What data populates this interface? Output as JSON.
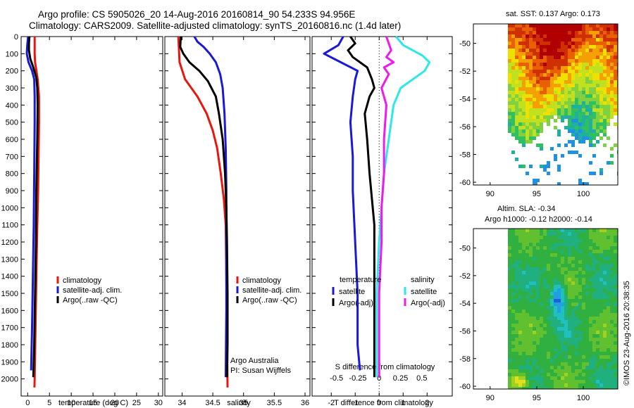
{
  "title": {
    "line1": "Argo profile: CS 5905026_20 14-Aug-2016 20160814_90 54.233S 94.956E",
    "line2": "Climatology: CARS2009. Satellite-adjusted climatology: synTS_20160816.nc (1.4d later)"
  },
  "right_titles": {
    "sst": "sat. SST: 0.137 Argo: 0.173",
    "sla1": "Altim. SLA: -0.34",
    "sla2": "Argo h1000: -0.12 h2000: -0.14"
  },
  "credit": {
    "agency": "Argo Australia",
    "pi": "PI: Susan Wijffels",
    "stamp": "©IMOS 23-Aug-2016 20:38:35"
  },
  "colors": {
    "red": "#e8160c",
    "blue": "#1a1ad6",
    "black": "#000000",
    "cyan": "#2ee8e8",
    "magenta": "#ee1aee"
  },
  "chart_data": [
    {
      "type": "line",
      "xlabel": "temperature (deg C)",
      "ylim": [
        2100,
        0
      ],
      "xlim": [
        -1.5,
        31
      ],
      "xticks": [
        "0",
        "5",
        "10",
        "15",
        "20",
        "25",
        "30"
      ],
      "xtick_values": [
        0,
        5,
        10,
        15,
        20,
        25,
        30
      ],
      "yticks": [
        "0",
        "100",
        "200",
        "300",
        "400",
        "500",
        "600",
        "700",
        "800",
        "900",
        "1000",
        "1100",
        "1200",
        "1300",
        "1400",
        "1500",
        "1600",
        "1700",
        "1800",
        "1900",
        "2000"
      ],
      "ytick_values": [
        0,
        100,
        200,
        300,
        400,
        500,
        600,
        700,
        800,
        900,
        1000,
        1100,
        1200,
        1300,
        1400,
        1500,
        1600,
        1700,
        1800,
        1900,
        2000
      ],
      "legend": [
        "climatology",
        "satellite-adj. clim.",
        "Argo(..raw -QC)"
      ],
      "series": [
        {
          "name": "climatology",
          "color": "red",
          "points": [
            [
              1.6,
              0
            ],
            [
              1.6,
              100
            ],
            [
              1.7,
              150
            ],
            [
              2.3,
              250
            ],
            [
              2.6,
              350
            ],
            [
              2.6,
              500
            ],
            [
              2.5,
              700
            ],
            [
              2.4,
              900
            ],
            [
              2.2,
              1100
            ],
            [
              2.0,
              1400
            ],
            [
              1.8,
              1700
            ],
            [
              1.6,
              2000
            ],
            [
              1.55,
              2050
            ]
          ]
        },
        {
          "name": "satellite-adj. clim.",
          "color": "blue",
          "points": [
            [
              0.1,
              0
            ],
            [
              -0.1,
              50
            ],
            [
              -0.2,
              100
            ],
            [
              0.2,
              150
            ],
            [
              1.0,
              200
            ],
            [
              1.5,
              250
            ],
            [
              1.6,
              350
            ],
            [
              1.6,
              500
            ],
            [
              1.5,
              800
            ],
            [
              1.4,
              1100
            ],
            [
              1.2,
              1400
            ],
            [
              1.0,
              1700
            ],
            [
              0.8,
              1950
            ]
          ]
        },
        {
          "name": "Argo(..raw -QC)",
          "color": "black",
          "points": [
            [
              0.4,
              0
            ],
            [
              0.3,
              40
            ],
            [
              0.3,
              80
            ],
            [
              0.6,
              130
            ],
            [
              1.3,
              180
            ],
            [
              2.0,
              240
            ],
            [
              2.2,
              300
            ],
            [
              2.3,
              400
            ],
            [
              2.2,
              600
            ],
            [
              2.0,
              900
            ],
            [
              1.9,
              1200
            ],
            [
              1.7,
              1500
            ],
            [
              1.5,
              1800
            ],
            [
              1.3,
              1990
            ]
          ]
        }
      ]
    },
    {
      "type": "line",
      "xlabel": "salinity",
      "ylim": [
        2100,
        0
      ],
      "xlim": [
        33.72,
        36.08
      ],
      "xticks": [
        "34",
        "34.5",
        "35",
        "35.5",
        "36"
      ],
      "xtick_values": [
        34,
        34.5,
        35,
        35.5,
        36
      ],
      "legend": [
        "climatology",
        "satellite-adj. clim.",
        "Argo(..raw -QC)"
      ],
      "series": [
        {
          "name": "climatology",
          "color": "red",
          "points": [
            [
              33.94,
              0
            ],
            [
              33.96,
              150
            ],
            [
              34.05,
              250
            ],
            [
              34.25,
              350
            ],
            [
              34.4,
              450
            ],
            [
              34.5,
              550
            ],
            [
              34.57,
              650
            ],
            [
              34.63,
              800
            ],
            [
              34.68,
              950
            ],
            [
              34.71,
              1100
            ],
            [
              34.72,
              1400
            ],
            [
              34.73,
              1700
            ],
            [
              34.74,
              2050
            ]
          ]
        },
        {
          "name": "satellite-adj. clim.",
          "color": "blue",
          "points": [
            [
              34.2,
              0
            ],
            [
              34.25,
              30
            ],
            [
              34.35,
              60
            ],
            [
              34.45,
              100
            ],
            [
              34.55,
              150
            ],
            [
              34.62,
              220
            ],
            [
              34.66,
              300
            ],
            [
              34.69,
              450
            ],
            [
              34.71,
              650
            ],
            [
              34.72,
              900
            ],
            [
              34.72,
              1200
            ],
            [
              34.72,
              1600
            ],
            [
              34.71,
              1990
            ]
          ]
        },
        {
          "name": "Argo(..raw -QC)",
          "color": "black",
          "points": [
            [
              33.98,
              0
            ],
            [
              33.97,
              60
            ],
            [
              34.02,
              100
            ],
            [
              34.12,
              150
            ],
            [
              34.28,
              200
            ],
            [
              34.42,
              260
            ],
            [
              34.55,
              350
            ],
            [
              34.6,
              450
            ],
            [
              34.66,
              600
            ],
            [
              34.7,
              800
            ],
            [
              34.72,
              1000
            ],
            [
              34.73,
              1200
            ],
            [
              34.74,
              1500
            ],
            [
              34.74,
              1800
            ],
            [
              34.73,
              1990
            ]
          ]
        }
      ]
    },
    {
      "type": "line",
      "xlabel": "T difference from climatology",
      "xlabel_top": "S difference from climatology",
      "ylim": [
        2100,
        0
      ],
      "xlim": [
        -2.8,
        3.05
      ],
      "xticks": [
        "-2",
        "-1",
        "0",
        "1",
        "2"
      ],
      "xtick_values": [
        -2,
        -1,
        0,
        1,
        2
      ],
      "s_ticks": [
        "-0.5",
        "-0.25",
        "0",
        "0.25",
        "0.5"
      ],
      "s_tick_t_values": [
        -1.78,
        -0.89,
        0,
        0.89,
        1.78
      ],
      "legend_titles": [
        "temperature",
        "salinity"
      ],
      "legend": [
        "satellite",
        "Argo(-adj)",
        "satellite",
        "Argo(-adj)"
      ],
      "series": [
        {
          "name": "satellite",
          "legend_group": "temperature",
          "color": "blue",
          "points": [
            [
              -1.5,
              0
            ],
            [
              -1.7,
              50
            ],
            [
              -2.3,
              100
            ],
            [
              -1.6,
              150
            ],
            [
              -0.9,
              200
            ],
            [
              -1.0,
              250
            ],
            [
              -1.1,
              350
            ],
            [
              -1.2,
              500
            ],
            [
              -1.1,
              700
            ],
            [
              -1.1,
              900
            ],
            [
              -1.0,
              1200
            ],
            [
              -0.9,
              1500
            ],
            [
              -0.9,
              1800
            ],
            [
              -0.8,
              1950
            ]
          ]
        },
        {
          "name": "Argo(-adj)",
          "legend_group": "temperature",
          "color": "black",
          "points": [
            [
              -1.2,
              0
            ],
            [
              -1.0,
              40
            ],
            [
              -1.3,
              80
            ],
            [
              -1.1,
              120
            ],
            [
              -0.5,
              180
            ],
            [
              -0.3,
              250
            ],
            [
              -0.2,
              300
            ],
            [
              -0.4,
              350
            ],
            [
              -0.6,
              450
            ],
            [
              -0.5,
              600
            ],
            [
              -0.4,
              800
            ],
            [
              -0.3,
              950
            ],
            [
              -0.2,
              1100
            ],
            [
              -0.2,
              1400
            ],
            [
              -0.2,
              1700
            ],
            [
              -0.2,
              1990
            ]
          ]
        },
        {
          "name": "satellite",
          "legend_group": "salinity",
          "color": "cyan",
          "points": [
            [
              0.7,
              0
            ],
            [
              1.0,
              50
            ],
            [
              1.8,
              110
            ],
            [
              2.1,
              150
            ],
            [
              1.9,
              200
            ],
            [
              1.4,
              250
            ],
            [
              0.9,
              300
            ],
            [
              0.6,
              400
            ],
            [
              0.4,
              600
            ],
            [
              0.2,
              800
            ],
            [
              0.1,
              1000
            ],
            [
              0.0,
              1200
            ],
            [
              -0.1,
              1500
            ],
            [
              -0.1,
              1800
            ],
            [
              -0.1,
              1990
            ]
          ]
        },
        {
          "name": "Argo(-adj)",
          "legend_group": "salinity",
          "color": "magenta",
          "points": [
            [
              0.3,
              0
            ],
            [
              0.4,
              40
            ],
            [
              0.5,
              80
            ],
            [
              0.3,
              120
            ],
            [
              0.6,
              150
            ],
            [
              0.2,
              180
            ],
            [
              0.4,
              220
            ],
            [
              0.1,
              300
            ],
            [
              0.3,
              400
            ],
            [
              0.2,
              600
            ],
            [
              0.2,
              800
            ],
            [
              0.1,
              1000
            ],
            [
              0.1,
              1200
            ],
            [
              0.0,
              1500
            ],
            [
              0.0,
              1800
            ],
            [
              0.0,
              1990
            ]
          ]
        }
      ]
    },
    {
      "type": "heatmap",
      "title": "sat. SST: 0.137 Argo: 0.173",
      "xlim": [
        88.2,
        103.7
      ],
      "ylim": [
        -60.2,
        -48.6
      ],
      "xticks": [
        "90",
        "95",
        "100"
      ],
      "xtick_values": [
        90,
        95,
        100
      ],
      "yticks": [
        "-50",
        "-52",
        "-54",
        "-56",
        "-58",
        "-60"
      ],
      "ytick_values": [
        -50,
        -52,
        -54,
        -56,
        -58,
        -60
      ]
    },
    {
      "type": "heatmap",
      "title": "Altim. SLA: -0.34",
      "xlim": [
        88.2,
        103.7
      ],
      "ylim": [
        -60.2,
        -48.6
      ],
      "xticks": [
        "90",
        "95",
        "100"
      ],
      "xtick_values": [
        90,
        95,
        100
      ],
      "yticks": [
        "-50",
        "-52",
        "-54",
        "-56",
        "-58",
        "-60"
      ],
      "ytick_values": [
        -50,
        -52,
        -54,
        -56,
        -58,
        -60
      ]
    }
  ]
}
